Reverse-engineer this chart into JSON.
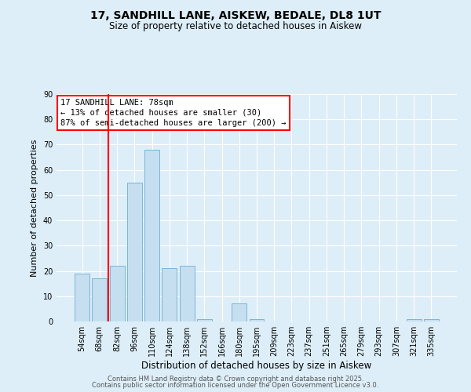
{
  "title1": "17, SANDHILL LANE, AISKEW, BEDALE, DL8 1UT",
  "title2": "Size of property relative to detached houses in Aiskew",
  "xlabel": "Distribution of detached houses by size in Aiskew",
  "ylabel": "Number of detached properties",
  "bar_labels": [
    "54sqm",
    "68sqm",
    "82sqm",
    "96sqm",
    "110sqm",
    "124sqm",
    "138sqm",
    "152sqm",
    "166sqm",
    "180sqm",
    "195sqm",
    "209sqm",
    "223sqm",
    "237sqm",
    "251sqm",
    "265sqm",
    "279sqm",
    "293sqm",
    "307sqm",
    "321sqm",
    "335sqm"
  ],
  "bar_values": [
    19,
    17,
    22,
    55,
    68,
    21,
    22,
    1,
    0,
    7,
    1,
    0,
    0,
    0,
    0,
    0,
    0,
    0,
    0,
    1,
    1
  ],
  "bar_color": "#c5dff0",
  "bar_edge_color": "#7ab5d8",
  "vline_color": "red",
  "vline_pos": 1.5,
  "ylim": [
    0,
    90
  ],
  "yticks": [
    0,
    10,
    20,
    30,
    40,
    50,
    60,
    70,
    80,
    90
  ],
  "annotation_title": "17 SANDHILL LANE: 78sqm",
  "annotation_line1": "← 13% of detached houses are smaller (30)",
  "annotation_line2": "87% of semi-detached houses are larger (200) →",
  "annotation_box_color": "white",
  "annotation_box_edge": "red",
  "footer1": "Contains HM Land Registry data © Crown copyright and database right 2025.",
  "footer2": "Contains public sector information licensed under the Open Government Licence v3.0.",
  "background_color": "#ddeef8",
  "plot_bg_color": "#ddeef8",
  "grid_color": "#ffffff",
  "title_fontsize": 10,
  "subtitle_fontsize": 8.5,
  "ylabel_fontsize": 8,
  "xlabel_fontsize": 8.5,
  "tick_fontsize": 7,
  "annot_fontsize": 7.5,
  "footer_fontsize": 6
}
